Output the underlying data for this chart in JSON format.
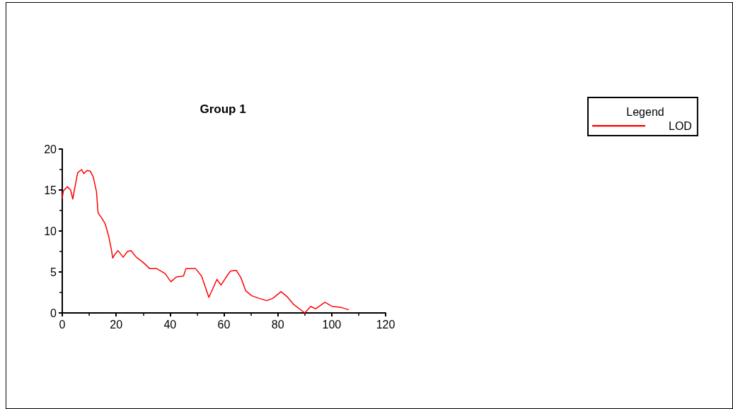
{
  "chart_data": {
    "type": "line",
    "title": "Group 1",
    "legend_title": "Legend",
    "legend": "right",
    "marker": "none",
    "line_style": "solid",
    "grid": false,
    "xlim": [
      0,
      120
    ],
    "xticks": [
      0,
      20,
      40,
      60,
      80,
      100,
      120
    ],
    "ylim": [
      0,
      20
    ],
    "yticks": [
      0,
      5,
      10,
      15,
      20
    ],
    "series": [
      {
        "name": "LOD",
        "color": "#ff0000",
        "x": [
          0,
          0.4,
          1.9,
          3.1,
          3.9,
          4.5,
          5.7,
          7.2,
          8.0,
          9.2,
          10.4,
          11.5,
          12.7,
          13.3,
          14.6,
          15.9,
          17.2,
          18.3,
          18.7,
          19.4,
          20.7,
          22.6,
          24.2,
          25.5,
          27.5,
          29.9,
          32.5,
          35.1,
          38.2,
          40.3,
          42.4,
          45,
          45.9,
          49.5,
          51.7,
          54.4,
          57.4,
          58.2,
          58.9,
          61.5,
          62.4,
          64.6,
          66.3,
          68.1,
          70.3,
          72.9,
          75.9,
          78.2,
          81.2,
          83.4,
          86,
          90,
          92.2,
          94,
          97.5,
          100.1,
          103.2,
          106.2
        ],
        "values": [
          14.0,
          14.9,
          15.4,
          15.0,
          13.9,
          15.0,
          17.1,
          17.5,
          17.0,
          17.4,
          17.3,
          16.6,
          14.8,
          12.2,
          11.6,
          10.9,
          9.4,
          7.6,
          6.7,
          7.1,
          7.6,
          6.8,
          7.5,
          7.6,
          6.8,
          6.2,
          5.4,
          5.4,
          4.8,
          3.8,
          4.4,
          4.5,
          5.4,
          5.4,
          4.5,
          1.9,
          4.1,
          3.7,
          3.4,
          4.7,
          5.1,
          5.2,
          4.3,
          2.7,
          2.1,
          1.8,
          1.5,
          1.8,
          2.6,
          2.0,
          1.0,
          0,
          0.8,
          0.5,
          1.3,
          0.8,
          0.7,
          0.4
        ]
      }
    ]
  }
}
